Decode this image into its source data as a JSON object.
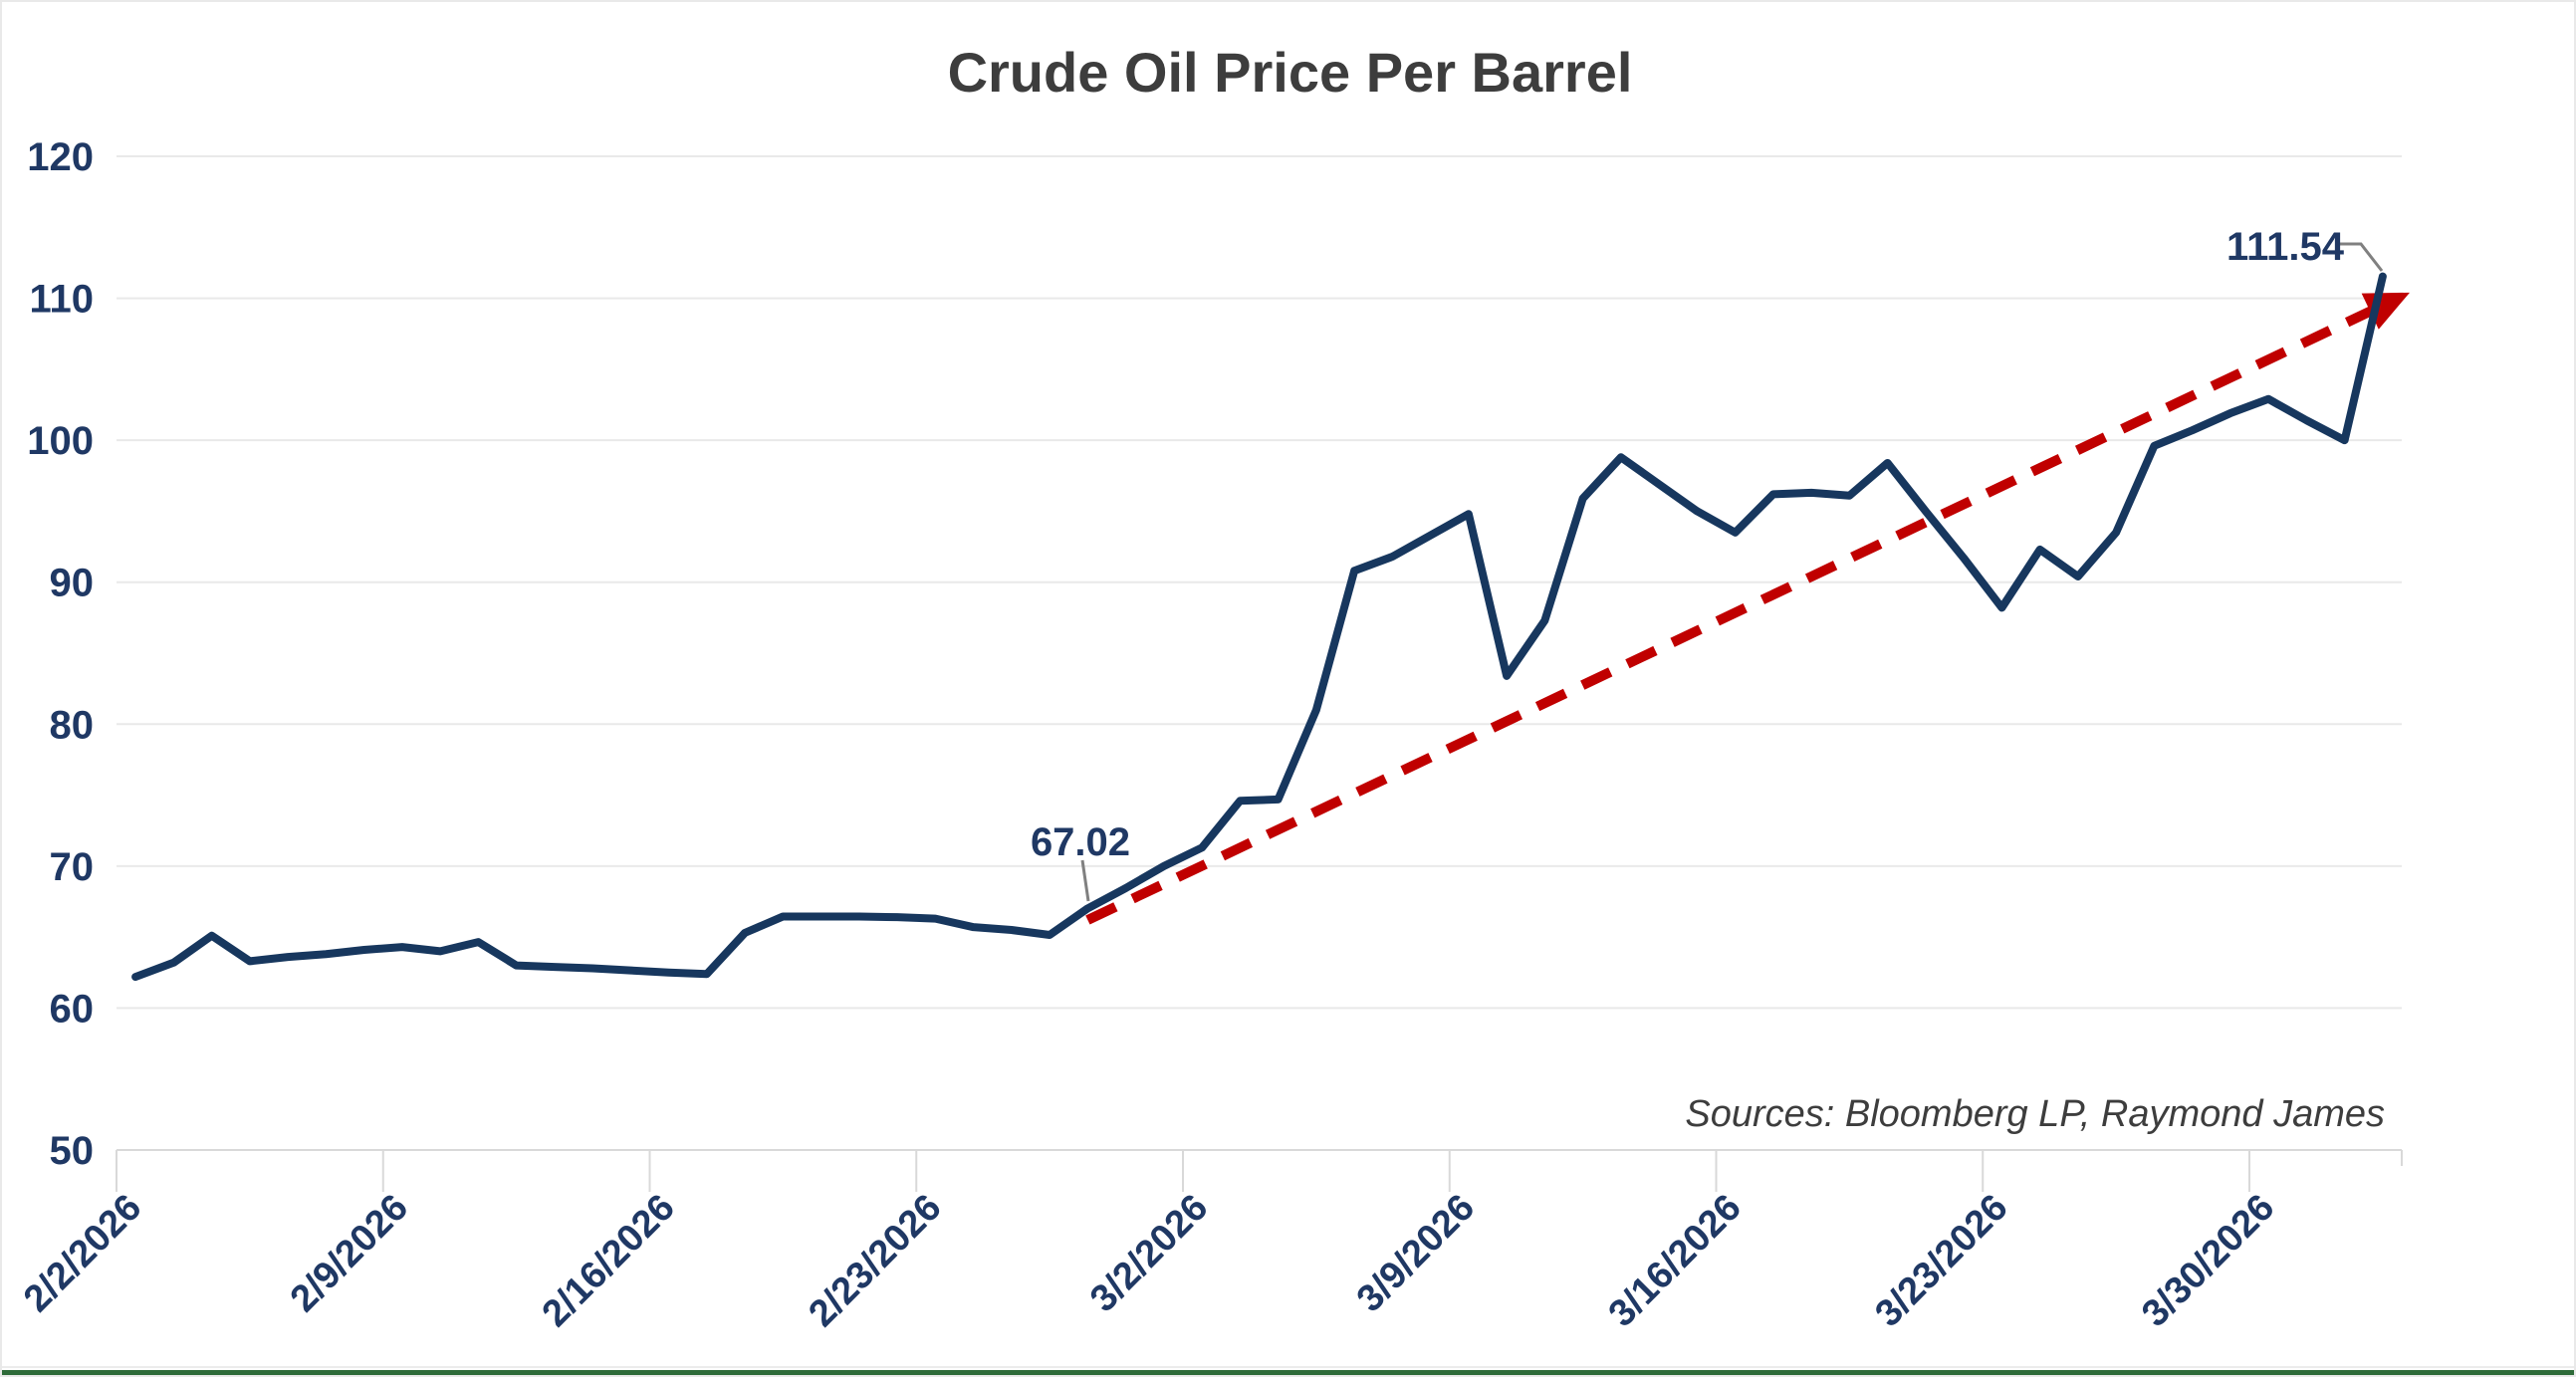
{
  "title": "Crude Oil Price Per Barrel",
  "source_note": "Sources: Bloomberg LP, Raymond James",
  "colors": {
    "series_line": "#17375e",
    "trend_line": "#c00000",
    "axis_label": "#1f3864",
    "gridline": "#e9e9e9",
    "axis_line": "#d9d9d9",
    "callout": "#808080",
    "title_text": "#3d3d3d",
    "bottom_edge": "#2e6b39"
  },
  "chart_data": {
    "type": "line",
    "title": "Crude Oil Price Per Barrel",
    "ylabel": "",
    "xlabel": "",
    "ylim": [
      50,
      120
    ],
    "yticks": [
      50,
      60,
      70,
      80,
      90,
      100,
      110,
      120
    ],
    "grid": "horizontal",
    "legend_position": "none",
    "x_tick_labels": [
      "2/2/2026",
      "2/9/2026",
      "2/16/2026",
      "2/23/2026",
      "3/2/2026",
      "3/9/2026",
      "3/16/2026",
      "3/23/2026",
      "3/30/2026"
    ],
    "x": [
      "2/2/2026",
      "2/3/2026",
      "2/4/2026",
      "2/5/2026",
      "2/6/2026",
      "2/7/2026",
      "2/8/2026",
      "2/9/2026",
      "2/10/2026",
      "2/11/2026",
      "2/12/2026",
      "2/13/2026",
      "2/14/2026",
      "2/15/2026",
      "2/16/2026",
      "2/17/2026",
      "2/18/2026",
      "2/19/2026",
      "2/20/2026",
      "2/21/2026",
      "2/22/2026",
      "2/23/2026",
      "2/24/2026",
      "2/25/2026",
      "2/26/2026",
      "2/27/2026",
      "2/28/2026",
      "3/1/2026",
      "3/2/2026",
      "3/3/2026",
      "3/4/2026",
      "3/5/2026",
      "3/6/2026",
      "3/7/2026",
      "3/8/2026",
      "3/9/2026",
      "3/10/2026",
      "3/11/2026",
      "3/12/2026",
      "3/13/2026",
      "3/14/2026",
      "3/15/2026",
      "3/16/2026",
      "3/17/2026",
      "3/18/2026",
      "3/19/2026",
      "3/20/2026",
      "3/21/2026",
      "3/22/2026",
      "3/23/2026",
      "3/24/2026",
      "3/25/2026",
      "3/26/2026",
      "3/27/2026",
      "3/28/2026",
      "3/29/2026",
      "3/30/2026",
      "3/31/2026",
      "4/1/2026",
      "4/2/2026"
    ],
    "series": [
      {
        "name": "Crude Oil Price Per Barrel",
        "values": [
          62.2,
          63.2,
          65.1,
          63.3,
          63.6,
          63.8,
          64.1,
          64.3,
          64.0,
          64.65,
          63.0,
          62.9,
          62.8,
          62.65,
          62.5,
          62.4,
          65.3,
          66.45,
          66.45,
          66.45,
          66.4,
          66.3,
          65.7,
          65.5,
          65.15,
          67.02,
          68.45,
          70.0,
          71.3,
          74.6,
          74.7,
          81.0,
          90.8,
          91.8,
          93.3,
          94.8,
          83.4,
          87.3,
          95.9,
          98.8,
          96.9,
          95.0,
          93.5,
          96.2,
          96.3,
          96.1,
          98.4,
          95.0,
          91.7,
          88.2,
          92.3,
          90.4,
          93.5,
          99.6,
          100.7,
          101.9,
          102.9,
          101.4,
          100.0,
          111.54
        ]
      }
    ],
    "annotations": [
      {
        "label": "67.02",
        "date": "2/27/2026",
        "value": 67.02
      },
      {
        "label": "111.54",
        "date": "4/2/2026",
        "value": 111.54
      }
    ],
    "trend_arrow": {
      "style": "dashed",
      "color": "#c00000",
      "from": {
        "date": "2/27/2026",
        "value": 66.2
      },
      "to": {
        "date": "4/2/2026",
        "value": 109.5
      }
    }
  }
}
